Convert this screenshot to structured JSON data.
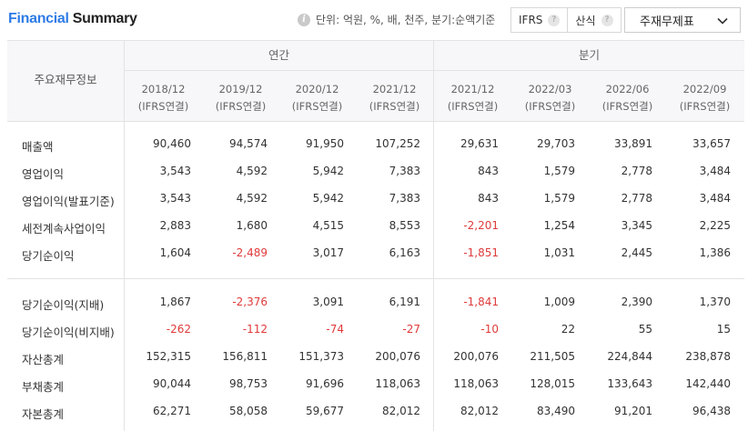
{
  "header": {
    "title_highlight": "Financial",
    "title_rest": " Summary",
    "unit_text": "단위: 억원, %, 배, 천주, 분기:순액기준",
    "options": [
      {
        "label": "IFRS",
        "help": "?"
      },
      {
        "label": "산식",
        "help": "?"
      }
    ],
    "select_value": "주재무제표"
  },
  "table": {
    "row_header": "주요재무정보",
    "groups": [
      {
        "label": "연간"
      },
      {
        "label": "분기"
      }
    ],
    "columns": [
      {
        "period": "2018/12",
        "basis": "(IFRS연결)"
      },
      {
        "period": "2019/12",
        "basis": "(IFRS연결)"
      },
      {
        "period": "2020/12",
        "basis": "(IFRS연결)"
      },
      {
        "period": "2021/12",
        "basis": "(IFRS연결)"
      },
      {
        "period": "2021/12",
        "basis": "(IFRS연결)"
      },
      {
        "period": "2022/03",
        "basis": "(IFRS연결)"
      },
      {
        "period": "2022/06",
        "basis": "(IFRS연결)"
      },
      {
        "period": "2022/09",
        "basis": "(IFRS연결)"
      }
    ],
    "rows": [
      {
        "label": "매출액",
        "values": [
          "90,460",
          "94,574",
          "91,950",
          "107,252",
          "29,631",
          "29,703",
          "33,891",
          "33,657"
        ]
      },
      {
        "label": "영업이익",
        "values": [
          "3,543",
          "4,592",
          "5,942",
          "7,383",
          "843",
          "1,579",
          "2,778",
          "3,484"
        ]
      },
      {
        "label": "영업이익(발표기준)",
        "values": [
          "3,543",
          "4,592",
          "5,942",
          "7,383",
          "843",
          "1,579",
          "2,778",
          "3,484"
        ]
      },
      {
        "label": "세전계속사업이익",
        "values": [
          "2,883",
          "1,680",
          "4,515",
          "8,553",
          "-2,201",
          "1,254",
          "3,345",
          "2,225"
        ]
      },
      {
        "label": "당기순이익",
        "values": [
          "1,604",
          "-2,489",
          "3,017",
          "6,163",
          "-1,851",
          "1,031",
          "2,445",
          "1,386"
        ]
      },
      {
        "label": "당기순이익(지배)",
        "values": [
          "1,867",
          "-2,376",
          "3,091",
          "6,191",
          "-1,841",
          "1,009",
          "2,390",
          "1,370"
        ]
      },
      {
        "label": "당기순이익(비지배)",
        "values": [
          "-262",
          "-112",
          "-74",
          "-27",
          "-10",
          "22",
          "55",
          "15"
        ]
      },
      {
        "label": "자산총계",
        "values": [
          "152,315",
          "156,811",
          "151,373",
          "200,076",
          "200,076",
          "211,505",
          "224,844",
          "238,878"
        ]
      },
      {
        "label": "부채총계",
        "values": [
          "90,044",
          "98,753",
          "91,696",
          "118,063",
          "118,063",
          "128,015",
          "133,643",
          "142,440"
        ]
      },
      {
        "label": "자본총계",
        "values": [
          "62,271",
          "58,058",
          "59,677",
          "82,012",
          "82,012",
          "83,490",
          "91,201",
          "96,438"
        ]
      }
    ]
  },
  "colors": {
    "accent": "#2e7be6",
    "negative": "#e03a3a"
  }
}
